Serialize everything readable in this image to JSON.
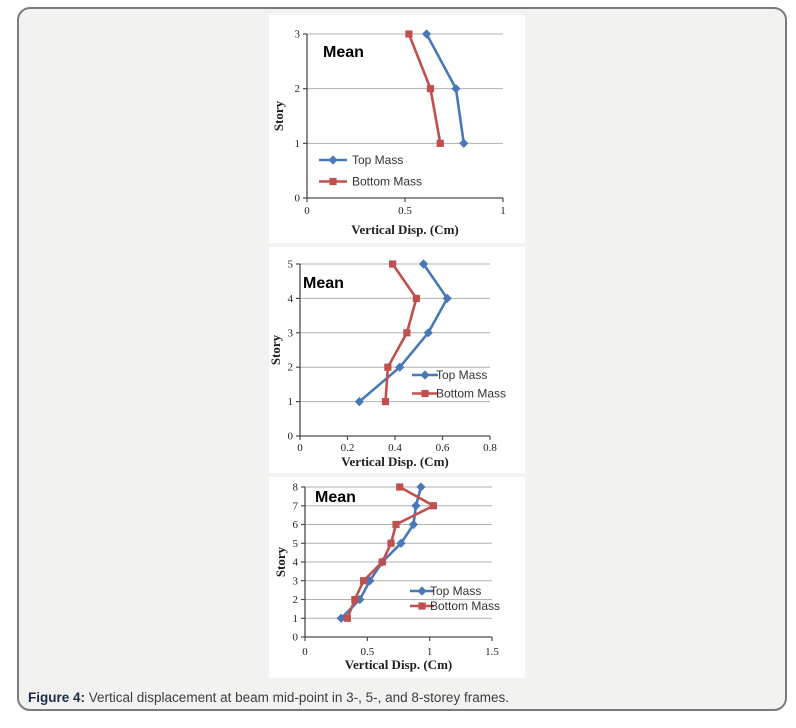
{
  "theme": {
    "panel_background": "#f2f2f1",
    "chart_background": "#ffffff",
    "panel_border": "#7b7b7b",
    "gridline": "#b0b0b0",
    "axis": "#4c4c4c",
    "tick_label": "#1f1f1f",
    "title_color": "#000000",
    "legend_text": "#333333",
    "top_mass_blue": "#4878B8",
    "bottom_mass_red": "#C0504D"
  },
  "caption": {
    "label": "Figure 4:",
    "text": " Vertical displacement at beam mid-point in 3-, 5-, and 8-storey frames."
  },
  "chart_data": [
    {
      "type": "line",
      "frame": "3-storey",
      "title": "Mean",
      "xlabel": "Vertical Disp. (Cm)",
      "ylabel": "Story",
      "xlim": [
        0,
        1
      ],
      "xticks": [
        0,
        0.5,
        1
      ],
      "xtick_labels": [
        "0",
        "0.5",
        "1"
      ],
      "ylim": [
        0,
        3
      ],
      "yticks": [
        0,
        1,
        2,
        3
      ],
      "grid": "horizontal",
      "legend_position": "inside-bottom-left",
      "stories": [
        1,
        2,
        3
      ],
      "series": [
        {
          "name": "Top Mass",
          "color": "#4878B8",
          "marker": "diamond",
          "values": [
            0.8,
            0.76,
            0.61
          ]
        },
        {
          "name": "Bottom Mass",
          "color": "#C0504D",
          "marker": "square",
          "values": [
            0.68,
            0.63,
            0.52
          ]
        }
      ]
    },
    {
      "type": "line",
      "frame": "5-storey",
      "title": "Mean",
      "xlabel": "Vertical Disp. (Cm)",
      "ylabel": "Story",
      "xlim": [
        0,
        0.8
      ],
      "xticks": [
        0,
        0.2,
        0.4,
        0.6,
        0.8
      ],
      "xtick_labels": [
        "0",
        "0.2",
        "0.4",
        "0.6",
        "0.8"
      ],
      "ylim": [
        0,
        5
      ],
      "yticks": [
        0,
        1,
        2,
        3,
        4,
        5
      ],
      "grid": "horizontal",
      "legend_position": "inside-middle-right",
      "stories": [
        1,
        2,
        3,
        4,
        5
      ],
      "series": [
        {
          "name": "Top Mass",
          "color": "#4878B8",
          "marker": "diamond",
          "values": [
            0.25,
            0.42,
            0.54,
            0.62,
            0.52
          ]
        },
        {
          "name": "Bottom Mass",
          "color": "#C0504D",
          "marker": "square",
          "values": [
            0.36,
            0.37,
            0.45,
            0.49,
            0.39
          ]
        }
      ]
    },
    {
      "type": "line",
      "frame": "8-storey",
      "title": "Mean",
      "xlabel": "Vertical Disp. (Cm)",
      "ylabel": "Story",
      "xlim": [
        0,
        1.5
      ],
      "xticks": [
        0,
        0.5,
        1,
        1.5
      ],
      "xtick_labels": [
        "0",
        "0.5",
        "1",
        "1.5"
      ],
      "ylim": [
        0,
        8
      ],
      "yticks": [
        0,
        1,
        2,
        3,
        4,
        5,
        6,
        7,
        8
      ],
      "grid": "horizontal",
      "legend_position": "inside-middle-right",
      "stories": [
        1,
        2,
        3,
        4,
        5,
        6,
        7,
        8
      ],
      "series": [
        {
          "name": "Top Mass",
          "color": "#4878B8",
          "marker": "diamond",
          "values": [
            0.29,
            0.44,
            0.52,
            0.62,
            0.77,
            0.87,
            0.89,
            0.93
          ]
        },
        {
          "name": "Bottom Mass",
          "color": "#C0504D",
          "marker": "square",
          "values": [
            0.34,
            0.4,
            0.47,
            0.62,
            0.69,
            0.73,
            1.03,
            0.76
          ]
        }
      ]
    }
  ]
}
